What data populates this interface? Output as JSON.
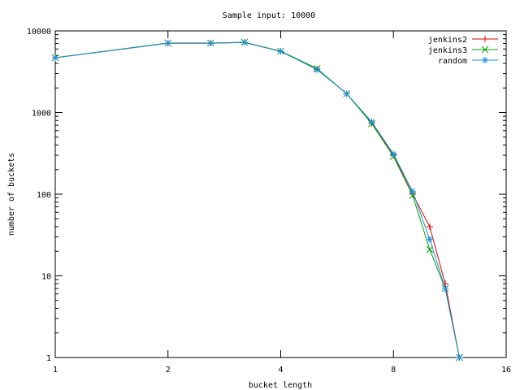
{
  "chart_data": {
    "type": "line",
    "title": "Sample input: 10000",
    "xlabel": "bucket length",
    "ylabel": "number of buckets",
    "x_scale": "log2",
    "y_scale": "log10",
    "xlim": [
      1,
      16
    ],
    "ylim": [
      1,
      10000
    ],
    "x_ticks": [
      "1",
      "2",
      "4",
      "8",
      "16"
    ],
    "y_ticks": [
      "1",
      "10",
      "100",
      "1000",
      "10000"
    ],
    "grid": false,
    "legend_position": "top-right",
    "series": [
      {
        "name": "jenkins2",
        "color": "#dd0000",
        "marker": "plus",
        "points": [
          [
            1,
            4700
          ],
          [
            2,
            7050
          ],
          [
            2.6,
            7050
          ],
          [
            3.2,
            7200
          ],
          [
            4,
            5600
          ],
          [
            5,
            3400
          ],
          [
            6,
            1700
          ],
          [
            7,
            740
          ],
          [
            8,
            300
          ],
          [
            9,
            100
          ],
          [
            10,
            40
          ],
          [
            11,
            8
          ],
          [
            12,
            1
          ]
        ]
      },
      {
        "name": "jenkins3",
        "color": "#00a000",
        "marker": "cross",
        "points": [
          [
            1,
            4700
          ],
          [
            2,
            7100
          ],
          [
            2.6,
            7100
          ],
          [
            3.2,
            7250
          ],
          [
            4,
            5650
          ],
          [
            5,
            3450
          ],
          [
            6,
            1700
          ],
          [
            7,
            730
          ],
          [
            8,
            290
          ],
          [
            9,
            97
          ],
          [
            10,
            21
          ],
          [
            11,
            7
          ],
          [
            12,
            1
          ]
        ]
      },
      {
        "name": "random",
        "color": "#1e90d8",
        "marker": "star",
        "points": [
          [
            1,
            4680
          ],
          [
            2,
            7080
          ],
          [
            2.6,
            7080
          ],
          [
            3.2,
            7230
          ],
          [
            4,
            5620
          ],
          [
            5,
            3350
          ],
          [
            6,
            1700
          ],
          [
            7,
            770
          ],
          [
            8,
            310
          ],
          [
            9,
            108
          ],
          [
            10,
            28
          ],
          [
            11,
            7
          ],
          [
            12,
            1
          ]
        ]
      }
    ]
  }
}
